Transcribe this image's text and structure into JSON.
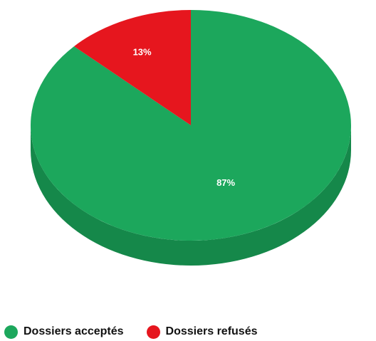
{
  "chart_data": {
    "type": "pie",
    "categories": [
      "Dossiers acceptés",
      "Dossiers refusés"
    ],
    "values": [
      87,
      13
    ],
    "data_labels": [
      "87%",
      "13%"
    ],
    "colors": [
      "#1ca75c",
      "#e6161e"
    ],
    "side_colors": [
      "#15884a",
      "#b81218"
    ],
    "legend_position": "bottom",
    "style": "3d"
  },
  "legend": {
    "items": [
      {
        "label": "Dossiers acceptés",
        "color": "#1ca75c"
      },
      {
        "label": "Dossiers refusés",
        "color": "#e6161e"
      }
    ]
  }
}
